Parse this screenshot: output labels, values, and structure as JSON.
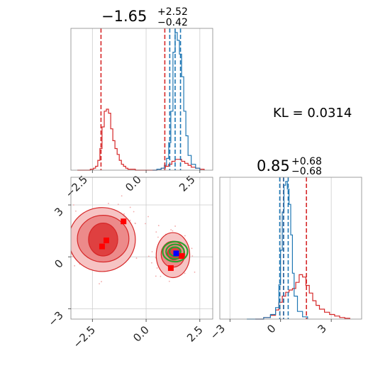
{
  "colors": {
    "red": "#d62728",
    "blue": "#1f77b4",
    "green": "#2ca02c",
    "marker_blue": "#0000ff",
    "marker_red": "#ff0000"
  },
  "annotation": "KL = 0.0314",
  "chart_data": [
    {
      "type": "line",
      "panel": "histogram-param-1",
      "title_main": "−1.65",
      "title_plus": "+2.52",
      "title_minus": "−0.42",
      "xlim": [
        -3.5,
        3.1
      ],
      "x_ticks": [
        "−2.5",
        "0.0",
        "2.5"
      ],
      "series": [
        {
          "color": "red",
          "x": [
            -3.2,
            -2.6,
            -2.45,
            -2.35,
            -2.25,
            -2.15,
            -2.05,
            -1.95,
            -1.85,
            -1.75,
            -1.65,
            -1.55,
            -1.45,
            -1.35,
            -1.25,
            -1.15,
            -1.05,
            -0.95,
            -0.85,
            -0.7,
            -0.5,
            -0.3,
            0.3,
            0.5,
            0.7,
            0.9,
            1.05,
            1.2,
            1.35,
            1.5,
            1.65,
            1.8,
            1.95,
            2.1,
            2.3,
            2.5,
            2.7
          ],
          "y": [
            0,
            1,
            2,
            4,
            10,
            22,
            44,
            60,
            62,
            58,
            42,
            30,
            22,
            16,
            10,
            6,
            4,
            2,
            1,
            1,
            0,
            0,
            0,
            1,
            2,
            4,
            6,
            9,
            11,
            11,
            9,
            7,
            5,
            3,
            2,
            1,
            0
          ]
        },
        {
          "color": "blue",
          "x": [
            0.3,
            0.5,
            0.7,
            0.85,
            0.95,
            1.05,
            1.15,
            1.25,
            1.35,
            1.45,
            1.55,
            1.65,
            1.75,
            1.85,
            1.95,
            2.1,
            2.3,
            2.5
          ],
          "y": [
            0,
            1,
            2,
            5,
            12,
            28,
            60,
            120,
            140,
            132,
            118,
            95,
            60,
            35,
            15,
            6,
            2,
            0
          ]
        }
      ],
      "vlines": [
        {
          "color": "red",
          "x": -2.1
        },
        {
          "color": "red",
          "x": 0.87
        },
        {
          "color": "blue",
          "x": 1.1
        },
        {
          "color": "blue",
          "x": 1.35
        },
        {
          "color": "blue",
          "x": 1.6
        }
      ]
    },
    {
      "type": "line",
      "panel": "histogram-param-2",
      "title_main": "0.85",
      "title_plus": "+0.68",
      "title_minus": "−0.68",
      "xlim": [
        -3.6,
        4.8
      ],
      "x_ticks": [
        "−3",
        "0",
        "3"
      ],
      "series": [
        {
          "color": "red",
          "x": [
            -1.5,
            -1.0,
            -0.6,
            -0.3,
            -0.1,
            0.1,
            0.3,
            0.5,
            0.7,
            0.9,
            1.1,
            1.3,
            1.5,
            1.7,
            1.9,
            2.1,
            2.3,
            2.6,
            2.9,
            3.2,
            3.5,
            3.8,
            4.1
          ],
          "y": [
            0,
            2,
            5,
            12,
            22,
            30,
            35,
            38,
            40,
            48,
            58,
            55,
            44,
            34,
            24,
            18,
            13,
            9,
            6,
            4,
            2,
            1,
            0
          ]
        },
        {
          "color": "blue",
          "x": [
            -2.0,
            -1.0,
            -0.6,
            -0.3,
            -0.1,
            0.0,
            0.1,
            0.2,
            0.3,
            0.4,
            0.5,
            0.6,
            0.7,
            0.8,
            1.0,
            1.3,
            1.6
          ],
          "y": [
            0,
            2,
            6,
            15,
            45,
            90,
            140,
            175,
            180,
            170,
            150,
            110,
            60,
            30,
            10,
            3,
            0
          ]
        }
      ],
      "vlines": [
        {
          "color": "red",
          "x": 0.17
        },
        {
          "color": "red",
          "x": 1.53
        },
        {
          "color": "blue",
          "x": -0.05
        },
        {
          "color": "blue",
          "x": 0.18
        },
        {
          "color": "blue",
          "x": 0.45
        }
      ]
    },
    {
      "type": "scatter",
      "panel": "corner-2d-density",
      "xlim": [
        -3.5,
        3.1
      ],
      "ylim": [
        -3.6,
        4.6
      ],
      "x_ticks": [
        "−2.5",
        "0.0",
        "2.5"
      ],
      "y_ticks": [
        "−3",
        "0",
        "3"
      ],
      "red_contours": [
        {
          "level": "outer",
          "cx": -2.05,
          "cy": 1.0,
          "rx": 1.55,
          "ry": 1.85
        },
        {
          "level": "middle",
          "cx": -2.0,
          "cy": 1.05,
          "rx": 1.2,
          "ry": 1.35
        },
        {
          "level": "inner",
          "cx": -2.0,
          "cy": 1.0,
          "rx": 0.68,
          "ry": 0.95
        },
        {
          "level": "outer",
          "cx": 1.25,
          "cy": 0.1,
          "rx": 0.78,
          "ry": 1.3
        },
        {
          "level": "middle",
          "cx": 1.25,
          "cy": 0.15,
          "rx": 0.55,
          "ry": 0.75
        },
        {
          "level": "inner",
          "cx": 1.3,
          "cy": 0.2,
          "rx": 0.3,
          "ry": 0.38
        }
      ],
      "green_contours": [
        {
          "cx": 1.35,
          "cy": 0.3,
          "rx": 0.58,
          "ry": 0.58
        },
        {
          "cx": 1.35,
          "cy": 0.3,
          "rx": 0.42,
          "ry": 0.42
        },
        {
          "cx": 1.35,
          "cy": 0.3,
          "rx": 0.26,
          "ry": 0.26
        }
      ],
      "red_markers": [
        {
          "x": -1.05,
          "y": 2.05
        },
        {
          "x": -1.85,
          "y": 0.95
        },
        {
          "x": -2.05,
          "y": 0.6
        },
        {
          "x": 1.15,
          "y": -0.65
        },
        {
          "x": 1.65,
          "y": 0.05
        }
      ],
      "blue_markers": [
        {
          "x": 1.4,
          "y": 0.2
        }
      ]
    }
  ]
}
